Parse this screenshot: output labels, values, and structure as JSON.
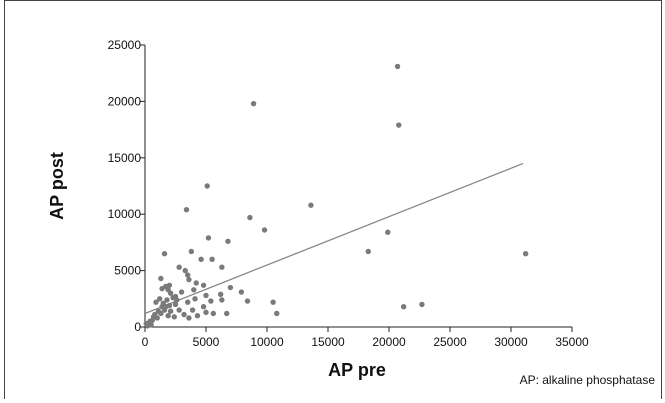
{
  "chart_data": {
    "type": "scatter",
    "title": "",
    "xlabel": "AP pre",
    "ylabel": "AP post",
    "xlim": [
      0,
      35000
    ],
    "ylim": [
      0,
      25000
    ],
    "x_ticks": [
      "0",
      "5000",
      "10000",
      "15000",
      "20000",
      "25000",
      "30000",
      "35000"
    ],
    "y_ticks": [
      "0",
      "5000",
      "10000",
      "15000",
      "20000",
      "25000"
    ],
    "grid": false,
    "point_color": "#7a7a7a",
    "line_color": "#888888",
    "trendline": {
      "x": [
        0,
        31000
      ],
      "y": [
        1200,
        14500
      ]
    },
    "points": [
      [
        20700,
        23100
      ],
      [
        8900,
        19800
      ],
      [
        20800,
        17900
      ],
      [
        5100,
        12500
      ],
      [
        3400,
        10400
      ],
      [
        13600,
        10800
      ],
      [
        8600,
        9700
      ],
      [
        19900,
        8400
      ],
      [
        9800,
        8600
      ],
      [
        5200,
        7900
      ],
      [
        6800,
        7600
      ],
      [
        31200,
        6500
      ],
      [
        18300,
        6700
      ],
      [
        3800,
        6700
      ],
      [
        1600,
        6500
      ],
      [
        4600,
        6000
      ],
      [
        5500,
        6000
      ],
      [
        6300,
        5300
      ],
      [
        2800,
        5300
      ],
      [
        3300,
        5000
      ],
      [
        3500,
        4600
      ],
      [
        3600,
        4200
      ],
      [
        1300,
        4300
      ],
      [
        4800,
        3700
      ],
      [
        4200,
        3900
      ],
      [
        7000,
        3500
      ],
      [
        7900,
        3100
      ],
      [
        2000,
        3700
      ],
      [
        1700,
        3600
      ],
      [
        1900,
        3300
      ],
      [
        1400,
        3400
      ],
      [
        2100,
        3000
      ],
      [
        3000,
        3100
      ],
      [
        4000,
        3300
      ],
      [
        5000,
        2800
      ],
      [
        6200,
        2900
      ],
      [
        2500,
        2700
      ],
      [
        2300,
        2600
      ],
      [
        2600,
        2400
      ],
      [
        1200,
        2500
      ],
      [
        1800,
        2400
      ],
      [
        1500,
        2100
      ],
      [
        900,
        2200
      ],
      [
        1400,
        1800
      ],
      [
        1700,
        1800
      ],
      [
        2000,
        1900
      ],
      [
        2500,
        2000
      ],
      [
        3500,
        2200
      ],
      [
        4100,
        2500
      ],
      [
        4800,
        1800
      ],
      [
        5400,
        2300
      ],
      [
        6300,
        2400
      ],
      [
        8400,
        2300
      ],
      [
        10500,
        2200
      ],
      [
        1100,
        1400
      ],
      [
        1300,
        1200
      ],
      [
        1600,
        1500
      ],
      [
        2100,
        1400
      ],
      [
        2800,
        1500
      ],
      [
        3200,
        1100
      ],
      [
        3900,
        1500
      ],
      [
        5000,
        1300
      ],
      [
        5600,
        1200
      ],
      [
        6700,
        1200
      ],
      [
        10800,
        1200
      ],
      [
        21200,
        1800
      ],
      [
        22700,
        2000
      ],
      [
        800,
        1100
      ],
      [
        1000,
        800
      ],
      [
        600,
        600
      ],
      [
        400,
        400
      ],
      [
        300,
        200
      ],
      [
        200,
        100
      ],
      [
        100,
        300
      ],
      [
        500,
        200
      ],
      [
        400,
        500
      ],
      [
        700,
        900
      ],
      [
        1900,
        1000
      ],
      [
        2400,
        900
      ],
      [
        3600,
        800
      ],
      [
        4300,
        1000
      ]
    ]
  },
  "footnote": "AP: alkaline phosphatase"
}
